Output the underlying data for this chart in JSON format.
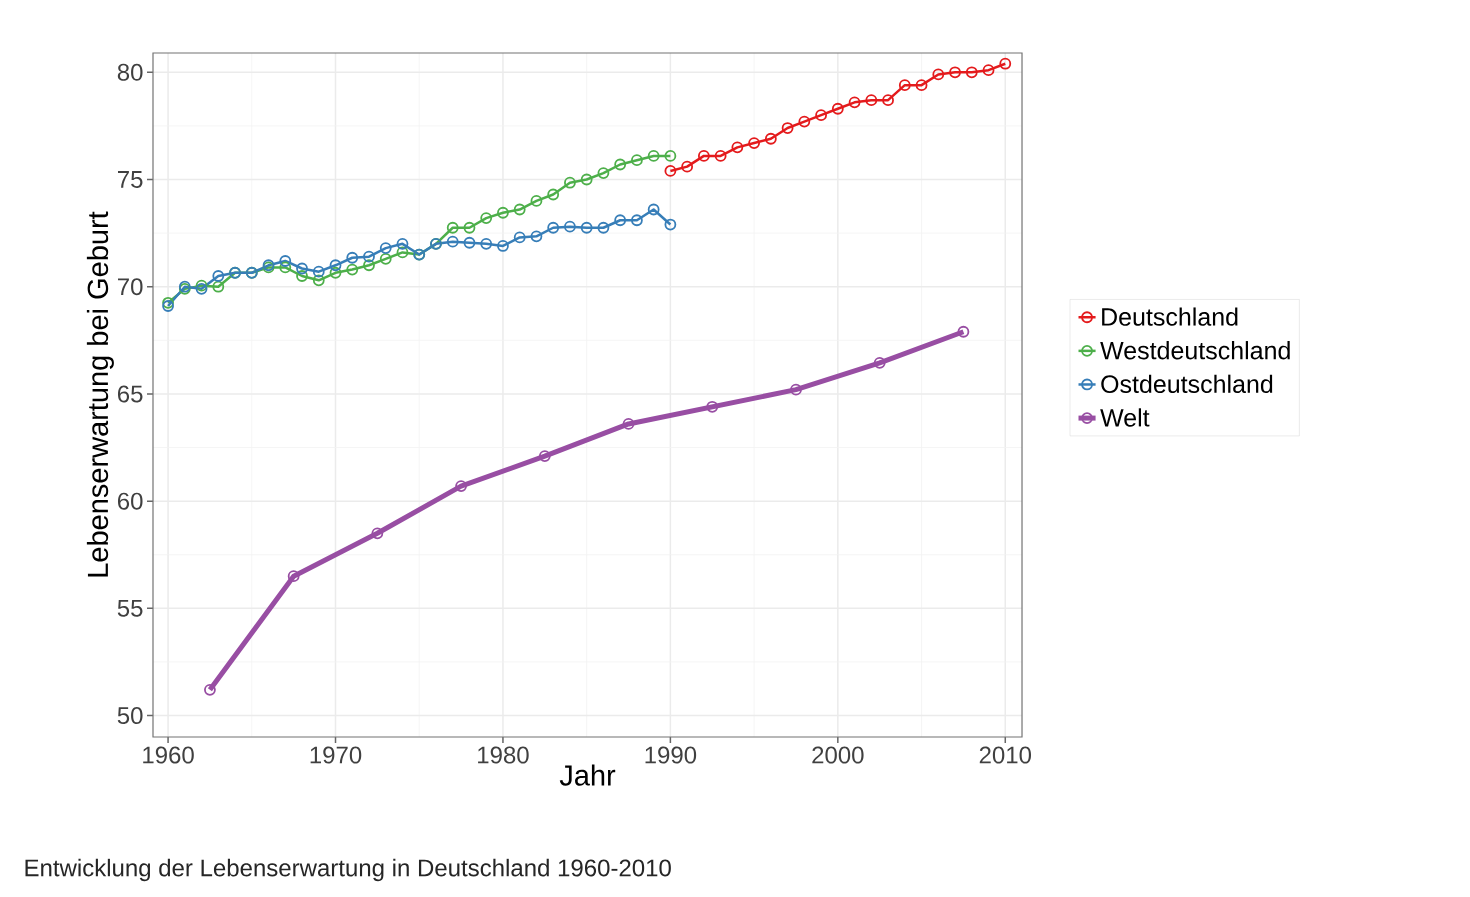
{
  "chart_data": {
    "type": "line",
    "xlabel": "Jahr",
    "ylabel": "Lebenserwartung bei Geburt",
    "annotations": [
      "Entwicklung der Lebenserwartung in Deutschland 1960-2010"
    ],
    "xlim": [
      1959.1,
      2011
    ],
    "ylim": [
      49,
      80.9
    ],
    "xticks": [
      1960,
      1970,
      1980,
      1990,
      2000,
      2010
    ],
    "yticks": [
      50,
      55,
      60,
      65,
      70,
      75,
      80
    ],
    "grid": true,
    "legend": "right",
    "marker": "circle",
    "line_style": "solid",
    "series": [
      {
        "name": "Deutschland",
        "color": "#e41a1c",
        "x": [
          1990,
          1991,
          1992,
          1993,
          1994,
          1995,
          1996,
          1997,
          1998,
          1999,
          2000,
          2001,
          2002,
          2003,
          2004,
          2005,
          2006,
          2007,
          2008,
          2009,
          2010
        ],
        "values": [
          75.4,
          75.6,
          76.1,
          76.1,
          76.5,
          76.7,
          76.9,
          77.4,
          77.7,
          78.0,
          78.3,
          78.6,
          78.7,
          78.7,
          79.4,
          79.4,
          79.9,
          80.0,
          80.0,
          80.1,
          80.4
        ]
      },
      {
        "name": "Westdeutschland",
        "color": "#4daf4a",
        "x": [
          1960,
          1961,
          1962,
          1963,
          1964,
          1965,
          1966,
          1967,
          1968,
          1969,
          1970,
          1971,
          1972,
          1973,
          1974,
          1975,
          1976,
          1977,
          1978,
          1979,
          1980,
          1981,
          1982,
          1983,
          1984,
          1985,
          1986,
          1987,
          1988,
          1989,
          1990
        ],
        "values": [
          69.25,
          69.9,
          70.05,
          70.0,
          70.65,
          70.65,
          70.9,
          70.9,
          70.5,
          70.3,
          70.65,
          70.8,
          71.0,
          71.3,
          71.6,
          71.5,
          72.0,
          72.75,
          72.75,
          73.2,
          73.45,
          73.6,
          74.0,
          74.3,
          74.85,
          75.0,
          75.3,
          75.7,
          75.9,
          76.1,
          76.1
        ]
      },
      {
        "name": "Ostdeutschland",
        "color": "#377eb8",
        "x": [
          1960,
          1961,
          1962,
          1963,
          1964,
          1965,
          1966,
          1967,
          1968,
          1969,
          1970,
          1971,
          1972,
          1973,
          1974,
          1975,
          1976,
          1977,
          1978,
          1979,
          1980,
          1981,
          1982,
          1983,
          1984,
          1985,
          1986,
          1987,
          1988,
          1989,
          1990
        ],
        "values": [
          69.1,
          70.0,
          69.9,
          70.5,
          70.65,
          70.65,
          71.0,
          71.2,
          70.85,
          70.7,
          71.0,
          71.35,
          71.4,
          71.8,
          72.0,
          71.5,
          72.0,
          72.1,
          72.05,
          72.0,
          71.9,
          72.3,
          72.35,
          72.75,
          72.8,
          72.75,
          72.75,
          73.1,
          73.1,
          73.6,
          72.9
        ]
      },
      {
        "name": "Welt",
        "color": "#984ea3",
        "x": [
          1962.5,
          1967.5,
          1972.5,
          1977.5,
          1982.5,
          1987.5,
          1992.5,
          1997.5,
          2002.5,
          2007.5
        ],
        "values": [
          51.2,
          56.5,
          58.5,
          60.7,
          62.1,
          63.6,
          64.4,
          65.2,
          66.45,
          67.9
        ]
      }
    ]
  }
}
